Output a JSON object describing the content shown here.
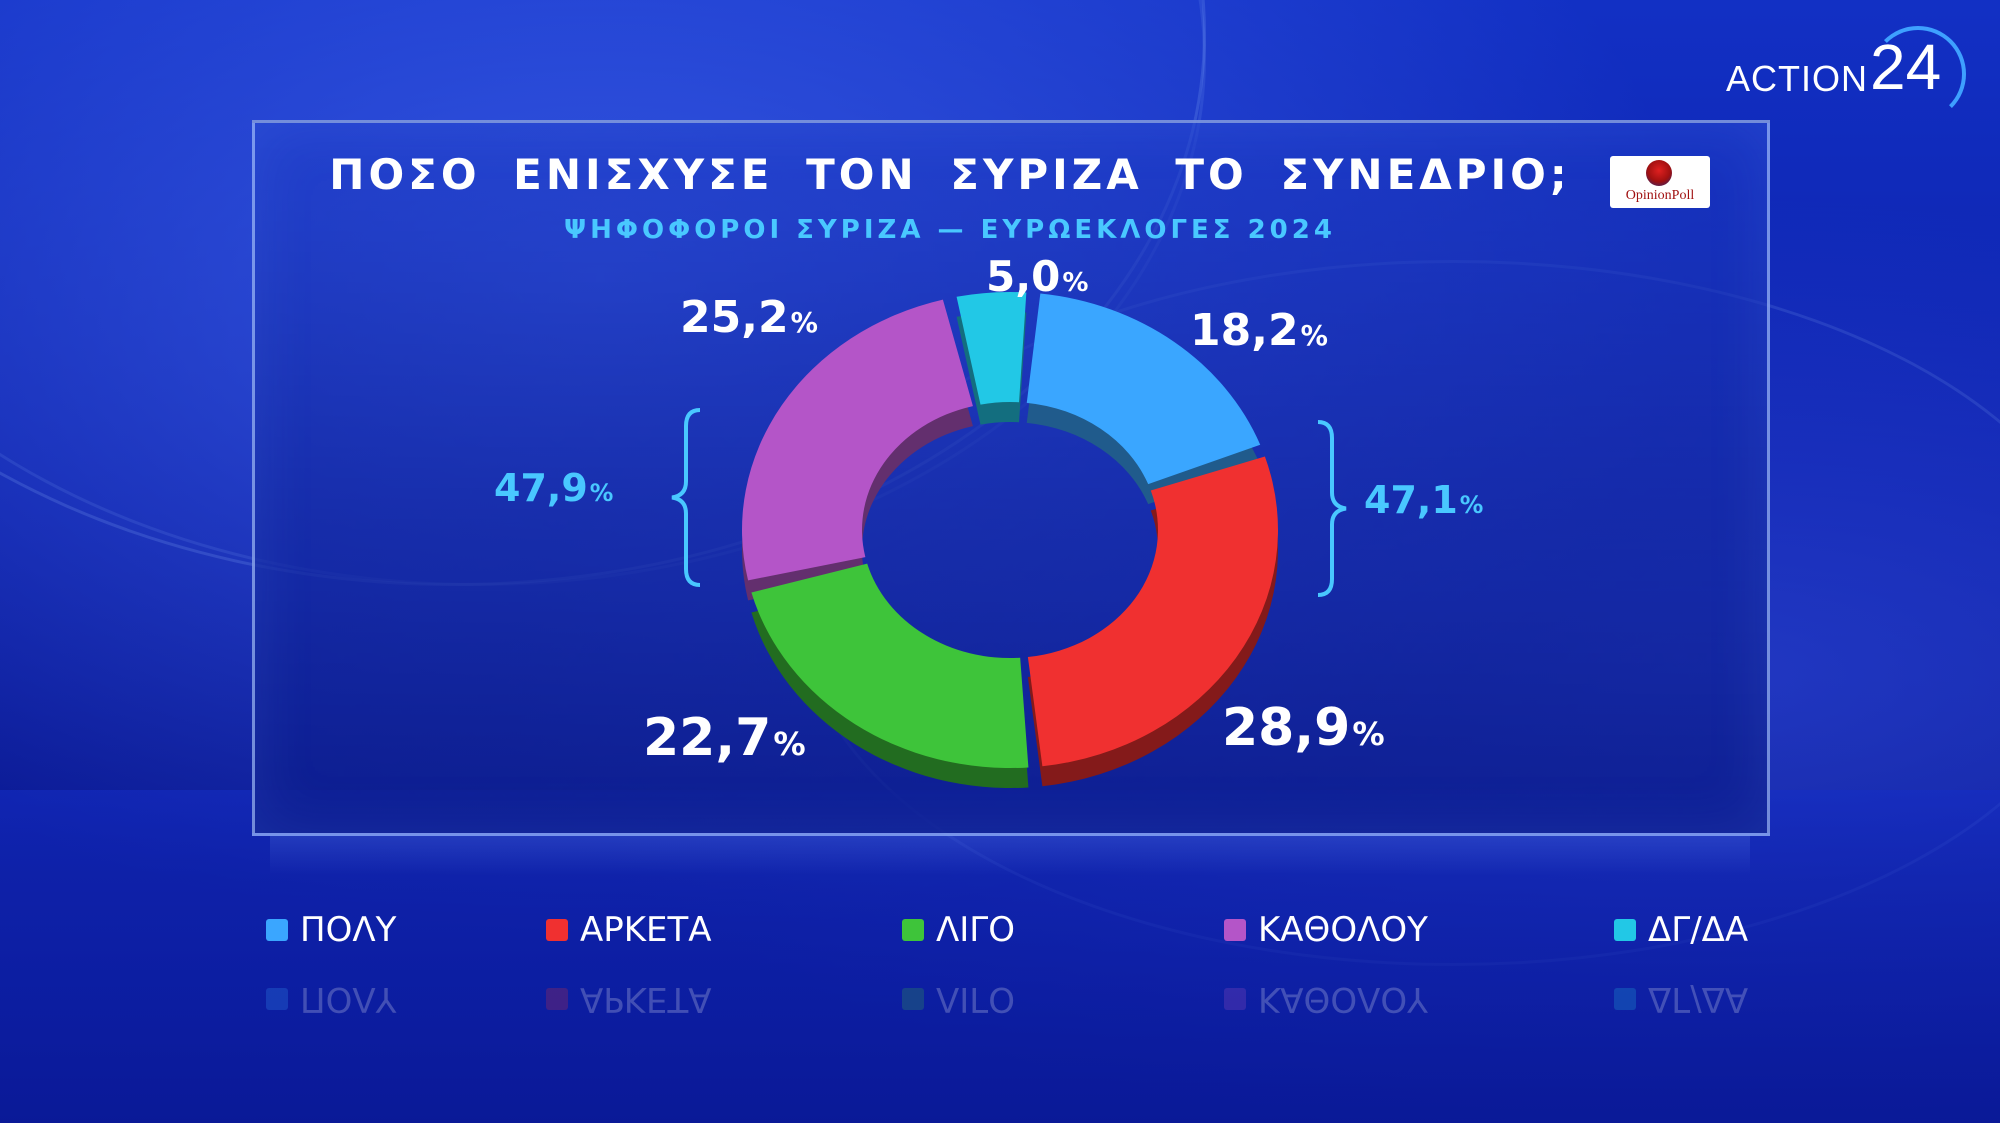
{
  "brand": {
    "name": "ACTION",
    "number": "24"
  },
  "logo": {
    "text": "OpinionPoll"
  },
  "chart_data": {
    "type": "pie",
    "title": "ΠΟΣΟ ΕΝΙΣΧΥΣΕ ΤΟΝ ΣΥΡΙΖΑ ΤΟ ΣΥΝΕΔΡΙΟ;",
    "subtitle": "ΨΗΦΟΦΟΡΟΙ ΣΥΡΙΖΑ — ΕΥΡΩΕΚΛΟΓΕΣ 2024",
    "unit": "%",
    "legend_position": "bottom",
    "slices": [
      {
        "label": "ΠΟΛΥ",
        "value": 18.2,
        "display": "18,2",
        "color": "#3aa6ff"
      },
      {
        "label": "ΑΡΚΕΤΑ",
        "value": 28.9,
        "display": "28,9",
        "color": "#f03030"
      },
      {
        "label": "ΛΙΓΟ",
        "value": 22.7,
        "display": "22,7",
        "color": "#3ec43a"
      },
      {
        "label": "ΚΑΘΟΛΟΥ",
        "value": 25.2,
        "display": "25,2",
        "color": "#b455c8"
      },
      {
        "label": "ΔΓ/ΔΑ",
        "value": 5.0,
        "display": "5,0",
        "color": "#22c8e6"
      }
    ],
    "groups": [
      {
        "value": 47.1,
        "display": "47,1"
      },
      {
        "value": 47.9,
        "display": "47,9"
      }
    ]
  }
}
